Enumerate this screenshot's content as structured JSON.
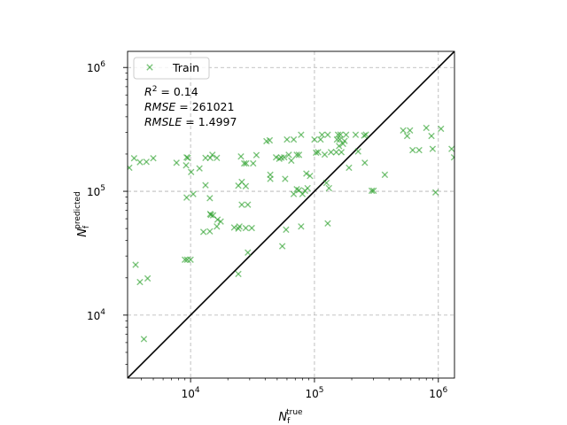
{
  "chart_data": {
    "type": "scatter",
    "xscale": "log",
    "yscale": "log",
    "xlim": [
      3100,
      1350000
    ],
    "ylim": [
      3100,
      1350000
    ],
    "grid": true,
    "legend_position": "top-left",
    "marker_color": "#2ca02c",
    "diagonal_color": "#000000",
    "xlabel": "N_f^true",
    "ylabel": "N_f^predicted",
    "x_ticks": [
      {
        "value": 10000,
        "base": "10",
        "exp": "4"
      },
      {
        "value": 100000,
        "base": "10",
        "exp": "5"
      },
      {
        "value": 1000000,
        "base": "10",
        "exp": "6"
      }
    ],
    "y_ticks": [
      {
        "value": 10000,
        "base": "10",
        "exp": "4"
      },
      {
        "value": 100000,
        "base": "10",
        "exp": "5"
      },
      {
        "value": 1000000,
        "base": "10",
        "exp": "6"
      }
    ],
    "stats": {
      "r2": "R² = 0.14",
      "rmse": "RMSE = 261021",
      "rmsle": "RMSLE = 1.4997"
    },
    "series": [
      {
        "name": "Train",
        "points": [
          [
            3200,
            155000
          ],
          [
            3500,
            185000
          ],
          [
            3900,
            172000
          ],
          [
            4400,
            173000
          ],
          [
            5000,
            185000
          ],
          [
            3600,
            25500
          ],
          [
            3900,
            18500
          ],
          [
            4500,
            19800
          ],
          [
            4200,
            6400
          ],
          [
            7700,
            170000
          ],
          [
            9200,
            162000
          ],
          [
            9500,
            186000
          ],
          [
            9300,
            188000
          ],
          [
            10100,
            143000
          ],
          [
            10500,
            95000
          ],
          [
            9300,
            89000
          ],
          [
            9000,
            28000
          ],
          [
            9400,
            28000
          ],
          [
            10000,
            28000
          ],
          [
            11800,
            153000
          ],
          [
            13200,
            186000
          ],
          [
            14400,
            186000
          ],
          [
            15000,
            197000
          ],
          [
            16300,
            186000
          ],
          [
            13200,
            112000
          ],
          [
            14300,
            88000
          ],
          [
            14400,
            65500
          ],
          [
            14600,
            64500
          ],
          [
            15200,
            64000
          ],
          [
            16500,
            59000
          ],
          [
            17500,
            57000
          ],
          [
            16300,
            52000
          ],
          [
            12700,
            47000
          ],
          [
            14300,
            47500
          ],
          [
            24300,
            50000
          ],
          [
            25500,
            191000
          ],
          [
            27100,
            168000
          ],
          [
            28100,
            168000
          ],
          [
            32000,
            168000
          ],
          [
            34000,
            196000
          ],
          [
            24300,
            111000
          ],
          [
            25900,
            119000
          ],
          [
            27900,
            110000
          ],
          [
            25900,
            78000
          ],
          [
            29000,
            78000
          ],
          [
            22500,
            51000
          ],
          [
            24800,
            52000
          ],
          [
            27900,
            50500
          ],
          [
            31200,
            50500
          ],
          [
            29000,
            32000
          ],
          [
            24300,
            21500
          ],
          [
            41000,
            254000
          ],
          [
            43500,
            258000
          ],
          [
            44000,
            136000
          ],
          [
            44000,
            126000
          ],
          [
            49000,
            188000
          ],
          [
            52000,
            183000
          ],
          [
            54000,
            187000
          ],
          [
            57000,
            188000
          ],
          [
            60000,
            262000
          ],
          [
            62000,
            197000
          ],
          [
            65000,
            177000
          ],
          [
            68000,
            262000
          ],
          [
            72000,
            197000
          ],
          [
            75000,
            197000
          ],
          [
            78000,
            286000
          ],
          [
            58000,
            126000
          ],
          [
            68000,
            95000
          ],
          [
            72000,
            104000
          ],
          [
            75000,
            102000
          ],
          [
            80000,
            95000
          ],
          [
            84000,
            101000
          ],
          [
            88000,
            106000
          ],
          [
            86000,
            139000
          ],
          [
            92000,
            133000
          ],
          [
            55000,
            36000
          ],
          [
            59000,
            49000
          ],
          [
            78000,
            52000
          ],
          [
            100000,
            262000
          ],
          [
            103000,
            205000
          ],
          [
            107000,
            207000
          ],
          [
            112000,
            262000
          ],
          [
            115000,
            286000
          ],
          [
            121000,
            198000
          ],
          [
            128000,
            286000
          ],
          [
            136000,
            207000
          ],
          [
            150000,
            207000
          ],
          [
            152000,
            262000
          ],
          [
            155000,
            286000
          ],
          [
            158000,
            232000
          ],
          [
            160000,
            262000
          ],
          [
            162000,
            287000
          ],
          [
            165000,
            207000
          ],
          [
            170000,
            242000
          ],
          [
            175000,
            255000
          ],
          [
            180000,
            286000
          ],
          [
            125000,
            117000
          ],
          [
            131000,
            106000
          ],
          [
            128000,
            55000
          ],
          [
            190000,
            155000
          ],
          [
            215000,
            286000
          ],
          [
            225000,
            210000
          ],
          [
            252000,
            282000
          ],
          [
            260000,
            287000
          ],
          [
            255000,
            170000
          ],
          [
            290000,
            101000
          ],
          [
            300000,
            101000
          ],
          [
            370000,
            136000
          ],
          [
            520000,
            310000
          ],
          [
            560000,
            280000
          ],
          [
            590000,
            310000
          ],
          [
            620000,
            215000
          ],
          [
            700000,
            215000
          ],
          [
            800000,
            325000
          ],
          [
            880000,
            280000
          ],
          [
            900000,
            220000
          ],
          [
            950000,
            98000
          ],
          [
            1050000,
            320000
          ],
          [
            1280000,
            220000
          ],
          [
            1340000,
            188000
          ]
        ]
      }
    ]
  }
}
